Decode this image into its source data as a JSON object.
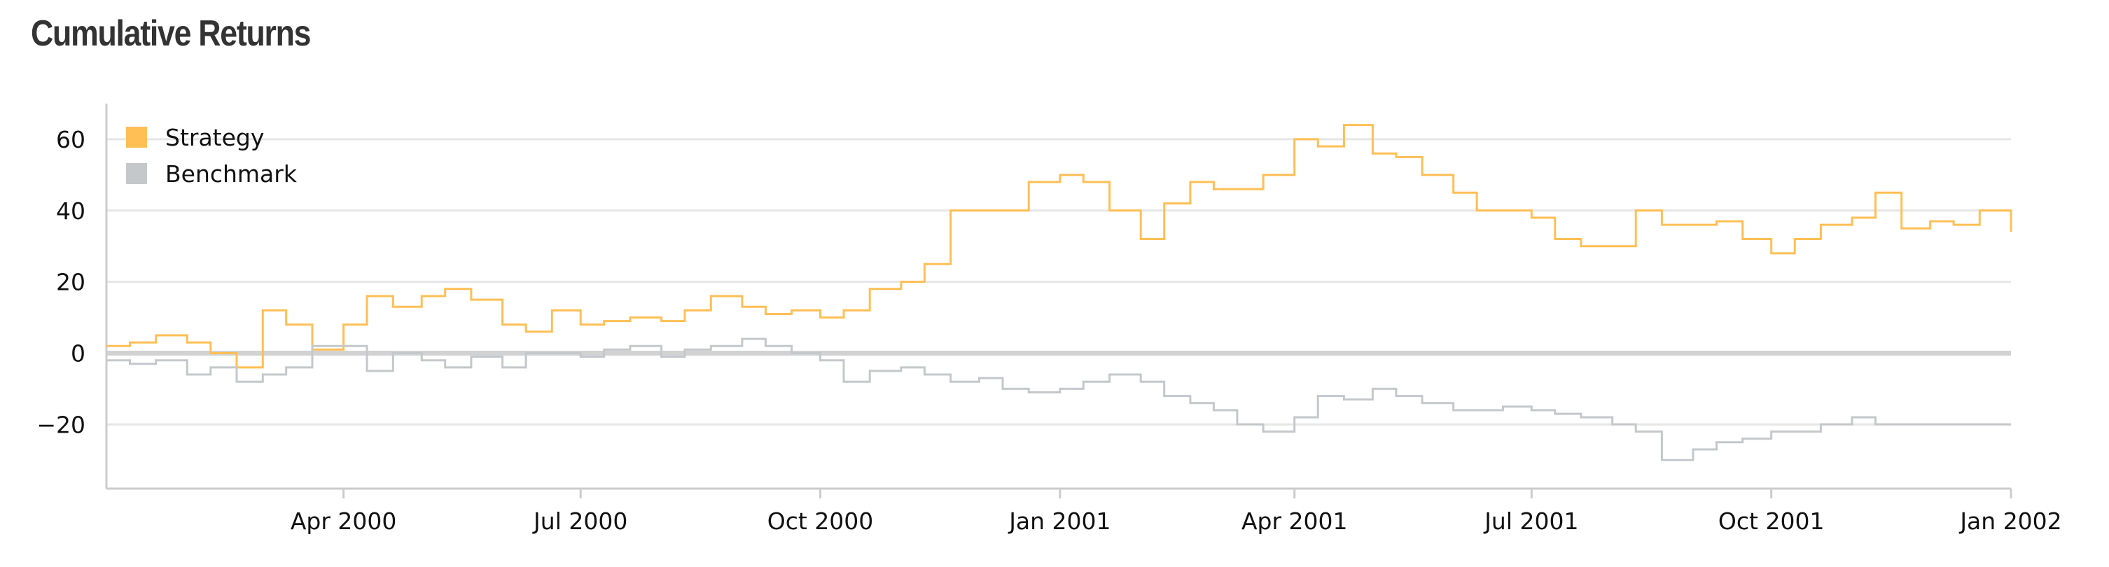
{
  "chart_data": {
    "type": "line",
    "title": "Cumulative Returns",
    "xlabel": "",
    "ylabel": "",
    "x_range": [
      "2000-01-01",
      "2002-01-01"
    ],
    "ylim": [
      -38,
      70
    ],
    "grid": true,
    "legend_position": "top-left",
    "x_ticks": [
      "2000-04-01",
      "2000-07-01",
      "2000-10-01",
      "2001-01-01",
      "2001-04-01",
      "2001-07-01",
      "2001-10-01",
      "2002-01-01"
    ],
    "x_tick_labels": [
      "Apr 2000",
      "Jul 2000",
      "Oct 2000",
      "Jan 2001",
      "Apr 2001",
      "Jul 2001",
      "Oct 2001",
      "Jan 2002"
    ],
    "y_ticks": [
      -20,
      0,
      20,
      40,
      60
    ],
    "y_tick_labels": [
      "−20",
      "0",
      "20",
      "40",
      "60"
    ],
    "series": [
      {
        "name": "Strategy",
        "color": "#ffbf55",
        "x": [
          "2000-01-01",
          "2000-01-10",
          "2000-01-20",
          "2000-02-01",
          "2000-02-10",
          "2000-02-20",
          "2000-03-01",
          "2000-03-10",
          "2000-03-20",
          "2000-04-01",
          "2000-04-10",
          "2000-04-20",
          "2000-05-01",
          "2000-05-10",
          "2000-05-20",
          "2000-06-01",
          "2000-06-10",
          "2000-06-20",
          "2000-07-01",
          "2000-07-10",
          "2000-07-20",
          "2000-08-01",
          "2000-08-10",
          "2000-08-20",
          "2000-09-01",
          "2000-09-10",
          "2000-09-20",
          "2000-10-01",
          "2000-10-10",
          "2000-10-20",
          "2000-11-01",
          "2000-11-10",
          "2000-11-20",
          "2000-12-01",
          "2000-12-10",
          "2000-12-20",
          "2001-01-01",
          "2001-01-10",
          "2001-01-20",
          "2001-02-01",
          "2001-02-10",
          "2001-02-20",
          "2001-03-01",
          "2001-03-10",
          "2001-03-20",
          "2001-04-01",
          "2001-04-10",
          "2001-04-20",
          "2001-05-01",
          "2001-05-10",
          "2001-05-20",
          "2001-06-01",
          "2001-06-10",
          "2001-06-20",
          "2001-07-01",
          "2001-07-10",
          "2001-07-20",
          "2001-08-01",
          "2001-08-10",
          "2001-08-20",
          "2001-09-01",
          "2001-09-10",
          "2001-09-20",
          "2001-10-01",
          "2001-10-10",
          "2001-10-20",
          "2001-11-01",
          "2001-11-10",
          "2001-11-20",
          "2001-12-01",
          "2001-12-10",
          "2001-12-20",
          "2002-01-01"
        ],
        "values": [
          2,
          3,
          5,
          3,
          0,
          -4,
          12,
          8,
          1,
          8,
          16,
          13,
          16,
          18,
          15,
          8,
          6,
          12,
          8,
          9,
          10,
          9,
          12,
          16,
          13,
          11,
          12,
          10,
          12,
          18,
          20,
          25,
          40,
          40,
          40,
          48,
          50,
          48,
          40,
          32,
          42,
          48,
          46,
          46,
          50,
          60,
          58,
          64,
          56,
          55,
          50,
          45,
          40,
          40,
          38,
          32,
          30,
          30,
          40,
          36,
          36,
          37,
          32,
          28,
          32,
          36,
          38,
          45,
          35,
          37,
          36,
          40,
          34
        ]
      },
      {
        "name": "Benchmark",
        "color": "#c4c8cb",
        "x": [
          "2000-01-01",
          "2000-01-10",
          "2000-01-20",
          "2000-02-01",
          "2000-02-10",
          "2000-02-20",
          "2000-03-01",
          "2000-03-10",
          "2000-03-20",
          "2000-04-01",
          "2000-04-10",
          "2000-04-20",
          "2000-05-01",
          "2000-05-10",
          "2000-05-20",
          "2000-06-01",
          "2000-06-10",
          "2000-06-20",
          "2000-07-01",
          "2000-07-10",
          "2000-07-20",
          "2000-08-01",
          "2000-08-10",
          "2000-08-20",
          "2000-09-01",
          "2000-09-10",
          "2000-09-20",
          "2000-10-01",
          "2000-10-10",
          "2000-10-20",
          "2000-11-01",
          "2000-11-10",
          "2000-11-20",
          "2000-12-01",
          "2000-12-10",
          "2000-12-20",
          "2001-01-01",
          "2001-01-10",
          "2001-01-20",
          "2001-02-01",
          "2001-02-10",
          "2001-02-20",
          "2001-03-01",
          "2001-03-10",
          "2001-03-20",
          "2001-04-01",
          "2001-04-10",
          "2001-04-20",
          "2001-05-01",
          "2001-05-10",
          "2001-05-20",
          "2001-06-01",
          "2001-06-10",
          "2001-06-20",
          "2001-07-01",
          "2001-07-10",
          "2001-07-20",
          "2001-08-01",
          "2001-08-10",
          "2001-08-20",
          "2001-09-01",
          "2001-09-10",
          "2001-09-20",
          "2001-10-01",
          "2001-10-10",
          "2001-10-20",
          "2001-11-01",
          "2001-11-10",
          "2001-11-20",
          "2001-12-01",
          "2001-12-10",
          "2001-12-20",
          "2002-01-01"
        ],
        "values": [
          -2,
          -3,
          -2,
          -6,
          -4,
          -8,
          -6,
          -4,
          2,
          2,
          -5,
          0,
          -2,
          -4,
          -1,
          -4,
          0,
          0,
          -1,
          1,
          2,
          -1,
          1,
          2,
          4,
          2,
          0,
          -2,
          -8,
          -5,
          -4,
          -6,
          -8,
          -7,
          -10,
          -11,
          -10,
          -8,
          -6,
          -8,
          -12,
          -14,
          -16,
          -20,
          -22,
          -18,
          -12,
          -13,
          -10,
          -12,
          -14,
          -16,
          -16,
          -15,
          -16,
          -17,
          -18,
          -20,
          -22,
          -30,
          -27,
          -25,
          -24,
          -22,
          -22,
          -20,
          -18,
          -20,
          -20,
          -20,
          -20,
          -20,
          -20
        ]
      }
    ]
  }
}
